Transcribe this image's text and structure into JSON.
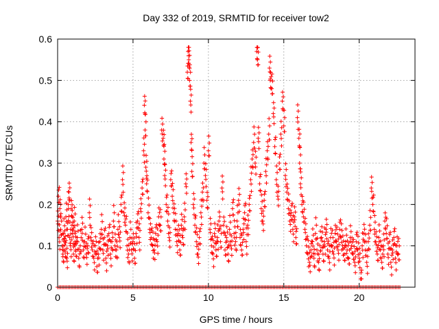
{
  "chart_data": {
    "type": "scatter",
    "title": "Day 332 of 2019, SRMTID for receiver tow2",
    "xlabel": "GPS time / hours",
    "ylabel": "SRMTID / TECUs",
    "xlim": [
      0,
      23.7
    ],
    "ylim": [
      0,
      0.6
    ],
    "xticks": [
      0,
      5,
      10,
      15,
      20
    ],
    "yticks": [
      0,
      0.1,
      0.2,
      0.3,
      0.4,
      0.5,
      0.6
    ],
    "xtick_labels": [
      "0",
      "5",
      "10",
      "15",
      "20"
    ],
    "ytick_labels": [
      "0",
      "0.1",
      "0.2",
      "0.3",
      "0.4",
      "0.5",
      "0.6"
    ],
    "grid": true,
    "marker": "+",
    "series": [
      {
        "name": "SRMTID",
        "color": "#ff0000",
        "points": [
          [
            0.0,
            0.16
          ],
          [
            0.05,
            0.22
          ],
          [
            0.1,
            0.12
          ],
          [
            0.15,
            0.19
          ],
          [
            0.2,
            0.14
          ],
          [
            0.3,
            0.1
          ],
          [
            0.35,
            0.08
          ],
          [
            0.4,
            0.13
          ],
          [
            0.45,
            0.11
          ],
          [
            0.5,
            0.09
          ],
          [
            0.55,
            0.17
          ],
          [
            0.6,
            0.07
          ],
          [
            0.65,
            0.14
          ],
          [
            0.7,
            0.2
          ],
          [
            0.75,
            0.23
          ],
          [
            0.8,
            0.12
          ],
          [
            0.85,
            0.1
          ],
          [
            0.9,
            0.19
          ],
          [
            0.95,
            0.15
          ],
          [
            1.0,
            0.13
          ],
          [
            1.05,
            0.08
          ],
          [
            1.1,
            0.16
          ],
          [
            1.15,
            0.11
          ],
          [
            1.2,
            0.09
          ],
          [
            1.3,
            0.12
          ],
          [
            1.4,
            0.07
          ],
          [
            1.5,
            0.1
          ],
          [
            1.6,
            0.14
          ],
          [
            1.7,
            0.09
          ],
          [
            1.8,
            0.11
          ],
          [
            1.9,
            0.08
          ],
          [
            2.0,
            0.1
          ],
          [
            2.1,
            0.18
          ],
          [
            2.2,
            0.12
          ],
          [
            2.3,
            0.09
          ],
          [
            2.4,
            0.07
          ],
          [
            2.5,
            0.1
          ],
          [
            2.6,
            0.05
          ],
          [
            2.7,
            0.08
          ],
          [
            2.8,
            0.11
          ],
          [
            2.9,
            0.14
          ],
          [
            3.0,
            0.09
          ],
          [
            3.1,
            0.12
          ],
          [
            3.2,
            0.07
          ],
          [
            3.3,
            0.1
          ],
          [
            3.4,
            0.13
          ],
          [
            3.5,
            0.08
          ],
          [
            3.6,
            0.11
          ],
          [
            3.7,
            0.16
          ],
          [
            3.8,
            0.1
          ],
          [
            3.9,
            0.09
          ],
          [
            4.0,
            0.14
          ],
          [
            4.1,
            0.12
          ],
          [
            4.2,
            0.2
          ],
          [
            4.3,
            0.26
          ],
          [
            4.4,
            0.18
          ],
          [
            4.5,
            0.15
          ],
          [
            4.6,
            0.1
          ],
          [
            4.7,
            0.08
          ],
          [
            4.8,
            0.12
          ],
          [
            4.9,
            0.09
          ],
          [
            5.0,
            0.11
          ],
          [
            5.1,
            0.07
          ],
          [
            5.2,
            0.13
          ],
          [
            5.3,
            0.16
          ],
          [
            5.4,
            0.12
          ],
          [
            5.5,
            0.19
          ],
          [
            5.6,
            0.24
          ],
          [
            5.7,
            0.33
          ],
          [
            5.75,
            0.44
          ],
          [
            5.8,
            0.38
          ],
          [
            5.85,
            0.29
          ],
          [
            5.9,
            0.25
          ],
          [
            6.0,
            0.18
          ],
          [
            6.1,
            0.14
          ],
          [
            6.2,
            0.12
          ],
          [
            6.3,
            0.1
          ],
          [
            6.4,
            0.09
          ],
          [
            6.5,
            0.13
          ],
          [
            6.6,
            0.11
          ],
          [
            6.7,
            0.17
          ],
          [
            6.8,
            0.15
          ],
          [
            6.9,
            0.38
          ],
          [
            7.0,
            0.36
          ],
          [
            7.05,
            0.31
          ],
          [
            7.1,
            0.27
          ],
          [
            7.2,
            0.2
          ],
          [
            7.3,
            0.16
          ],
          [
            7.4,
            0.12
          ],
          [
            7.5,
            0.26
          ],
          [
            7.6,
            0.22
          ],
          [
            7.7,
            0.18
          ],
          [
            7.8,
            0.14
          ],
          [
            7.9,
            0.11
          ],
          [
            8.0,
            0.13
          ],
          [
            8.1,
            0.09
          ],
          [
            8.2,
            0.15
          ],
          [
            8.3,
            0.12
          ],
          [
            8.4,
            0.17
          ],
          [
            8.5,
            0.25
          ],
          [
            8.6,
            0.52
          ],
          [
            8.65,
            0.57
          ],
          [
            8.7,
            0.55
          ],
          [
            8.75,
            0.5
          ],
          [
            8.8,
            0.45
          ],
          [
            8.85,
            0.35
          ],
          [
            8.9,
            0.28
          ],
          [
            9.0,
            0.2
          ],
          [
            9.1,
            0.15
          ],
          [
            9.2,
            0.11
          ],
          [
            9.3,
            0.08
          ],
          [
            9.4,
            0.12
          ],
          [
            9.5,
            0.18
          ],
          [
            9.6,
            0.23
          ],
          [
            9.7,
            0.3
          ],
          [
            9.8,
            0.27
          ],
          [
            9.9,
            0.21
          ],
          [
            10.0,
            0.33
          ],
          [
            10.1,
            0.14
          ],
          [
            10.2,
            0.1
          ],
          [
            10.3,
            0.08
          ],
          [
            10.4,
            0.13
          ],
          [
            10.5,
            0.09
          ],
          [
            10.6,
            0.12
          ],
          [
            10.7,
            0.16
          ],
          [
            10.8,
            0.11
          ],
          [
            10.9,
            0.24
          ],
          [
            11.0,
            0.15
          ],
          [
            11.1,
            0.09
          ],
          [
            11.2,
            0.12
          ],
          [
            11.3,
            0.08
          ],
          [
            11.4,
            0.14
          ],
          [
            11.5,
            0.1
          ],
          [
            11.6,
            0.19
          ],
          [
            11.7,
            0.13
          ],
          [
            11.8,
            0.11
          ],
          [
            11.9,
            0.16
          ],
          [
            12.0,
            0.21
          ],
          [
            12.1,
            0.12
          ],
          [
            12.2,
            0.09
          ],
          [
            12.3,
            0.14
          ],
          [
            12.4,
            0.18
          ],
          [
            12.5,
            0.11
          ],
          [
            12.6,
            0.15
          ],
          [
            12.7,
            0.2
          ],
          [
            12.8,
            0.26
          ],
          [
            12.9,
            0.31
          ],
          [
            13.0,
            0.35
          ],
          [
            13.1,
            0.3
          ],
          [
            13.2,
            0.57
          ],
          [
            13.25,
            0.55
          ],
          [
            13.3,
            0.36
          ],
          [
            13.4,
            0.25
          ],
          [
            13.5,
            0.19
          ],
          [
            13.6,
            0.16
          ],
          [
            13.7,
            0.21
          ],
          [
            13.8,
            0.28
          ],
          [
            13.9,
            0.33
          ],
          [
            14.0,
            0.37
          ],
          [
            14.05,
            0.53
          ],
          [
            14.1,
            0.5
          ],
          [
            14.2,
            0.48
          ],
          [
            14.3,
            0.42
          ],
          [
            14.4,
            0.34
          ],
          [
            14.5,
            0.26
          ],
          [
            14.6,
            0.22
          ],
          [
            14.7,
            0.3
          ],
          [
            14.8,
            0.37
          ],
          [
            14.9,
            0.45
          ],
          [
            15.0,
            0.39
          ],
          [
            15.1,
            0.27
          ],
          [
            15.2,
            0.23
          ],
          [
            15.3,
            0.19
          ],
          [
            15.4,
            0.16
          ],
          [
            15.5,
            0.18
          ],
          [
            15.6,
            0.14
          ],
          [
            15.7,
            0.17
          ],
          [
            15.8,
            0.12
          ],
          [
            15.9,
            0.41
          ],
          [
            16.0,
            0.36
          ],
          [
            16.05,
            0.3
          ],
          [
            16.1,
            0.25
          ],
          [
            16.2,
            0.2
          ],
          [
            16.3,
            0.17
          ],
          [
            16.4,
            0.14
          ],
          [
            16.5,
            0.1
          ],
          [
            16.6,
            0.08
          ],
          [
            16.7,
            0.06
          ],
          [
            16.8,
            0.09
          ],
          [
            16.9,
            0.11
          ],
          [
            17.0,
            0.07
          ],
          [
            17.1,
            0.13
          ],
          [
            17.2,
            0.09
          ],
          [
            17.3,
            0.06
          ],
          [
            17.4,
            0.1
          ],
          [
            17.5,
            0.12
          ],
          [
            17.6,
            0.08
          ],
          [
            17.7,
            0.11
          ],
          [
            17.8,
            0.14
          ],
          [
            17.9,
            0.09
          ],
          [
            18.0,
            0.07
          ],
          [
            18.1,
            0.12
          ],
          [
            18.2,
            0.1
          ],
          [
            18.3,
            0.08
          ],
          [
            18.4,
            0.13
          ],
          [
            18.5,
            0.11
          ],
          [
            18.6,
            0.09
          ],
          [
            18.7,
            0.14
          ],
          [
            18.8,
            0.12
          ],
          [
            18.9,
            0.1
          ],
          [
            19.0,
            0.08
          ],
          [
            19.1,
            0.11
          ],
          [
            19.2,
            0.09
          ],
          [
            19.3,
            0.07
          ],
          [
            19.4,
            0.12
          ],
          [
            19.5,
            0.1
          ],
          [
            19.6,
            0.08
          ],
          [
            19.7,
            0.06
          ],
          [
            19.8,
            0.11
          ],
          [
            19.9,
            0.09
          ],
          [
            20.0,
            0.07
          ],
          [
            20.1,
            0.02
          ],
          [
            20.2,
            0.1
          ],
          [
            20.3,
            0.13
          ],
          [
            20.4,
            0.09
          ],
          [
            20.5,
            0.06
          ],
          [
            20.6,
            0.11
          ],
          [
            20.7,
            0.15
          ],
          [
            20.8,
            0.24
          ],
          [
            20.9,
            0.2
          ],
          [
            21.0,
            0.14
          ],
          [
            21.1,
            0.11
          ],
          [
            21.2,
            0.08
          ],
          [
            21.3,
            0.12
          ],
          [
            21.4,
            0.09
          ],
          [
            21.5,
            0.06
          ],
          [
            21.6,
            0.1
          ],
          [
            21.7,
            0.16
          ],
          [
            21.8,
            0.13
          ],
          [
            21.9,
            0.08
          ],
          [
            22.0,
            0.11
          ],
          [
            22.1,
            0.06
          ],
          [
            22.2,
            0.09
          ],
          [
            22.3,
            0.12
          ],
          [
            22.4,
            0.07
          ],
          [
            22.5,
            0.1
          ],
          [
            22.6,
            0.08
          ]
        ]
      }
    ],
    "zero_row": {
      "value": 0,
      "x_range": [
        0,
        22.7
      ]
    }
  }
}
